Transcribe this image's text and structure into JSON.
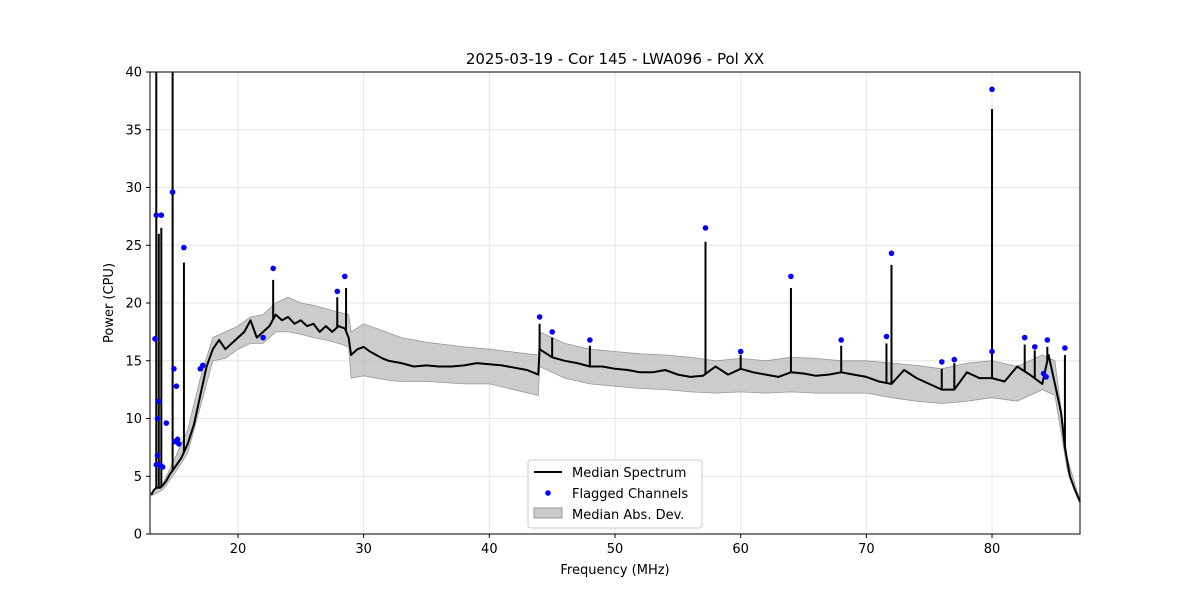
{
  "chart_data": {
    "type": "line",
    "title": "2025-03-19 - Cor 145 - LWA096 - Pol XX",
    "xlabel": "Frequency (MHz)",
    "ylabel": "Power (CPU)",
    "xlim": [
      13.0,
      87.0
    ],
    "ylim": [
      0,
      40
    ],
    "xticks": [
      20,
      30,
      40,
      50,
      60,
      70,
      80
    ],
    "yticks": [
      0,
      5,
      10,
      15,
      20,
      25,
      30,
      35,
      40
    ],
    "grid": true,
    "legend_position": "lower-center",
    "legend": [
      "Median Spectrum",
      "Flagged Channels",
      "Median Abs. Dev."
    ],
    "series_colors": {
      "median": "#000000",
      "flagged": "#0000ff",
      "mad": "#bbbbbb"
    },
    "median_spectrum": {
      "x": [
        13.1,
        13.3,
        13.5,
        13.8,
        14.0,
        14.3,
        14.6,
        15.0,
        15.5,
        16.0,
        16.5,
        17.0,
        17.5,
        18.0,
        18.5,
        19.0,
        19.5,
        20.0,
        20.5,
        21.0,
        21.5,
        22.0,
        22.5,
        23.0,
        23.5,
        24.0,
        24.5,
        25.0,
        25.5,
        26.0,
        26.5,
        27.0,
        27.5,
        28.0,
        28.5,
        28.8,
        29.0,
        29.5,
        30.0,
        30.5,
        31.0,
        31.5,
        32.0,
        33.0,
        34.0,
        35.0,
        36.0,
        37.0,
        38.0,
        39.0,
        40.0,
        41.0,
        42.0,
        43.0,
        43.9,
        44.0,
        45.0,
        46.0,
        47.0,
        48.0,
        49.0,
        50.0,
        51.0,
        52.0,
        53.0,
        54.0,
        55.0,
        56.0,
        57.0,
        58.0,
        59.0,
        60.0,
        61.0,
        62.0,
        63.0,
        64.0,
        65.0,
        66.0,
        67.0,
        68.0,
        69.0,
        70.0,
        71.0,
        72.0,
        73.0,
        74.0,
        75.0,
        76.0,
        77.0,
        78.0,
        79.0,
        80.0,
        81.0,
        82.0,
        83.0,
        84.0,
        84.5,
        85.0,
        85.5,
        85.8,
        86.2,
        86.6,
        87.0
      ],
      "y": [
        3.4,
        3.8,
        4.0,
        4.0,
        4.2,
        4.6,
        5.2,
        5.8,
        6.6,
        7.8,
        9.5,
        12.0,
        14.5,
        16.0,
        16.8,
        16.0,
        16.5,
        17.0,
        17.5,
        18.5,
        17.0,
        17.5,
        18.0,
        19.0,
        18.5,
        18.8,
        18.2,
        18.5,
        18.0,
        18.2,
        17.5,
        18.0,
        17.5,
        18.0,
        17.8,
        17.0,
        15.5,
        16.0,
        16.2,
        15.8,
        15.5,
        15.2,
        15.0,
        14.8,
        14.5,
        14.6,
        14.5,
        14.5,
        14.6,
        14.8,
        14.7,
        14.6,
        14.4,
        14.2,
        13.8,
        16.0,
        15.3,
        15.0,
        14.8,
        14.5,
        14.5,
        14.3,
        14.2,
        14.0,
        14.0,
        14.2,
        13.8,
        13.6,
        13.7,
        14.5,
        13.8,
        14.3,
        14.0,
        13.8,
        13.6,
        14.0,
        13.9,
        13.7,
        13.8,
        14.0,
        13.8,
        13.6,
        13.2,
        13.0,
        14.2,
        13.5,
        13.0,
        12.5,
        12.5,
        14.0,
        13.5,
        13.5,
        13.2,
        14.5,
        13.8,
        13.0,
        15.5,
        13.0,
        10.5,
        7.5,
        5.0,
        3.8,
        2.8
      ]
    },
    "median_spikes": [
      {
        "x": 13.5,
        "y": 40.0
      },
      {
        "x": 13.7,
        "y": 26.0
      },
      {
        "x": 13.9,
        "y": 26.5
      },
      {
        "x": 14.8,
        "y": 40.0
      },
      {
        "x": 15.7,
        "y": 23.5
      },
      {
        "x": 22.8,
        "y": 22.0
      },
      {
        "x": 27.9,
        "y": 20.5
      },
      {
        "x": 28.6,
        "y": 21.3
      },
      {
        "x": 44.0,
        "y": 18.2
      },
      {
        "x": 45.0,
        "y": 17.0
      },
      {
        "x": 48.0,
        "y": 16.3
      },
      {
        "x": 57.2,
        "y": 25.3
      },
      {
        "x": 60.0,
        "y": 15.5
      },
      {
        "x": 64.0,
        "y": 21.3
      },
      {
        "x": 68.0,
        "y": 16.3
      },
      {
        "x": 71.6,
        "y": 16.5
      },
      {
        "x": 72.0,
        "y": 23.3
      },
      {
        "x": 76.0,
        "y": 14.3
      },
      {
        "x": 77.0,
        "y": 14.8
      },
      {
        "x": 80.0,
        "y": 36.8
      },
      {
        "x": 82.6,
        "y": 16.4
      },
      {
        "x": 83.4,
        "y": 15.9
      },
      {
        "x": 84.4,
        "y": 16.2
      },
      {
        "x": 85.8,
        "y": 15.5
      }
    ],
    "flagged_channels": {
      "x": [
        13.4,
        13.5,
        13.6,
        13.7,
        13.9,
        13.5,
        13.6,
        13.8,
        14.0,
        14.3,
        14.8,
        14.9,
        15.0,
        15.1,
        15.2,
        15.3,
        15.7,
        17.0,
        17.2,
        22.0,
        22.8,
        27.9,
        28.5,
        44.0,
        45.0,
        48.0,
        57.2,
        60.0,
        64.0,
        68.0,
        71.6,
        72.0,
        76.0,
        77.0,
        80.0,
        80.0,
        82.6,
        83.4,
        84.1,
        84.3,
        84.4,
        85.8
      ],
      "y": [
        16.9,
        27.6,
        10.0,
        11.5,
        27.6,
        6.0,
        6.8,
        6.0,
        5.8,
        9.6,
        29.6,
        14.3,
        8.0,
        12.8,
        8.2,
        7.8,
        24.8,
        14.3,
        14.6,
        17.0,
        23.0,
        21.0,
        22.3,
        18.8,
        17.5,
        16.8,
        26.5,
        15.8,
        22.3,
        16.8,
        17.1,
        24.3,
        14.9,
        15.1,
        38.5,
        15.8,
        17.0,
        16.2,
        13.9,
        13.6,
        16.8,
        16.1
      ]
    },
    "mad_band": {
      "x": [
        13.1,
        14.0,
        15.0,
        16.0,
        17.0,
        18.0,
        19.0,
        20.0,
        21.0,
        22.0,
        23.0,
        24.0,
        25.0,
        26.0,
        27.0,
        28.0,
        28.8,
        29.0,
        30.0,
        31.0,
        32.0,
        33.0,
        35.0,
        38.0,
        40.0,
        43.9,
        44.0,
        46.0,
        48.0,
        50.0,
        52.0,
        54.0,
        56.0,
        58.0,
        60.0,
        62.0,
        64.0,
        66.0,
        68.0,
        70.0,
        72.0,
        74.0,
        76.0,
        78.0,
        80.0,
        82.0,
        84.0,
        85.0,
        86.0,
        87.0
      ],
      "lower": [
        3.3,
        3.8,
        5.3,
        7.0,
        11.0,
        15.0,
        15.2,
        16.0,
        16.5,
        16.5,
        17.5,
        17.5,
        17.3,
        17.0,
        16.8,
        16.5,
        16.2,
        13.5,
        13.7,
        13.5,
        13.3,
        13.2,
        13.2,
        13.0,
        13.0,
        12.0,
        14.5,
        13.5,
        13.0,
        12.8,
        12.6,
        12.5,
        12.3,
        12.2,
        12.3,
        12.2,
        12.3,
        12.2,
        12.2,
        12.2,
        11.8,
        11.5,
        11.3,
        11.5,
        11.8,
        11.5,
        12.5,
        12.0,
        5.5,
        2.7
      ],
      "upper": [
        3.6,
        4.3,
        6.6,
        9.0,
        13.5,
        17.0,
        17.5,
        18.0,
        18.8,
        19.0,
        20.0,
        20.5,
        20.0,
        19.8,
        19.5,
        19.2,
        19.0,
        17.5,
        18.2,
        17.8,
        17.4,
        17.0,
        16.6,
        16.2,
        16.0,
        15.5,
        17.5,
        16.5,
        16.0,
        15.8,
        15.6,
        15.5,
        15.3,
        15.0,
        15.2,
        15.0,
        15.3,
        15.2,
        15.0,
        15.0,
        14.8,
        14.6,
        14.3,
        14.8,
        15.0,
        14.5,
        15.5,
        15.0,
        6.5,
        2.9
      ]
    }
  }
}
